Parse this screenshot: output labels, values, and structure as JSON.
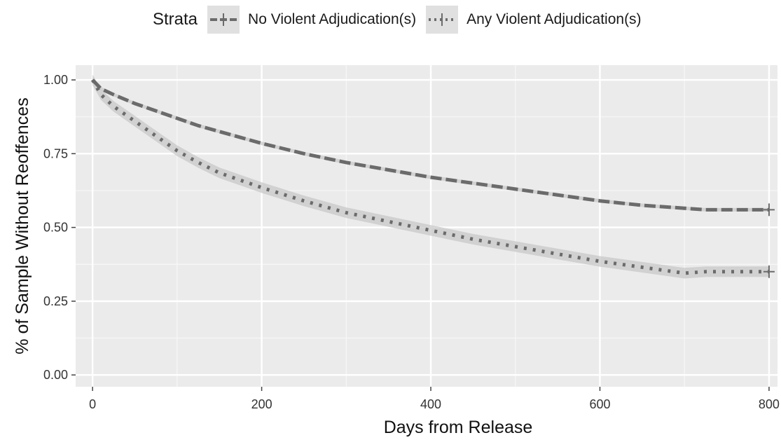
{
  "chart_data": {
    "type": "line",
    "xlabel": "Days from Release",
    "ylabel": "% of Sample Without Reoffences",
    "xlim": [
      -20,
      810
    ],
    "ylim": [
      -0.04,
      1.05
    ],
    "x_ticks": [
      0,
      200,
      400,
      600,
      800
    ],
    "x_tick_labels": [
      "0",
      "200",
      "400",
      "600",
      "800"
    ],
    "y_ticks": [
      0.0,
      0.25,
      0.5,
      0.75,
      1.0
    ],
    "y_tick_labels": [
      "0.00",
      "0.25",
      "0.50",
      "0.75",
      "1.00"
    ],
    "grid": true,
    "legend": {
      "title": "Strata",
      "position": "top"
    },
    "series": [
      {
        "name": "No Violent Adjudication(s)",
        "line_style": "dashed",
        "color": "#6b6b6b",
        "x": [
          0,
          10,
          25,
          50,
          75,
          100,
          125,
          150,
          175,
          200,
          250,
          300,
          350,
          400,
          450,
          500,
          550,
          600,
          650,
          700,
          725,
          750,
          775,
          800
        ],
        "y": [
          1.0,
          0.97,
          0.95,
          0.92,
          0.895,
          0.87,
          0.845,
          0.825,
          0.805,
          0.785,
          0.75,
          0.72,
          0.695,
          0.67,
          0.65,
          0.63,
          0.61,
          0.59,
          0.575,
          0.565,
          0.56,
          0.56,
          0.56,
          0.56
        ],
        "ci_halfwidth": 0.006
      },
      {
        "name": "Any Violent Adjudication(s)",
        "line_style": "dotted",
        "color": "#6b6b6b",
        "x": [
          0,
          10,
          25,
          50,
          75,
          100,
          125,
          150,
          175,
          200,
          250,
          300,
          350,
          400,
          450,
          500,
          550,
          600,
          650,
          700,
          725,
          750,
          775,
          800
        ],
        "y": [
          1.0,
          0.95,
          0.91,
          0.86,
          0.81,
          0.76,
          0.72,
          0.685,
          0.66,
          0.635,
          0.59,
          0.55,
          0.52,
          0.49,
          0.46,
          0.435,
          0.41,
          0.385,
          0.365,
          0.345,
          0.35,
          0.35,
          0.35,
          0.35
        ],
        "ci_halfwidth": 0.018
      }
    ]
  }
}
